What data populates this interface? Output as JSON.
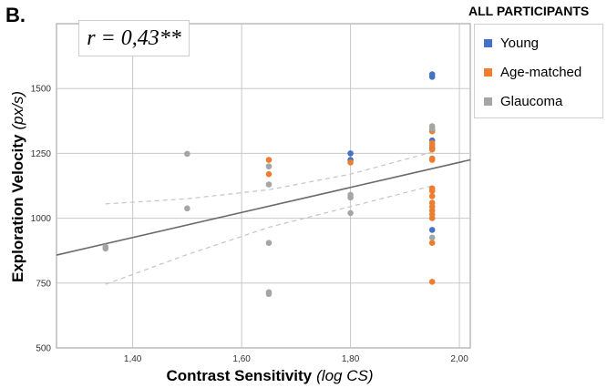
{
  "panel_label": "B.",
  "annotation": "r = 0,43**",
  "legend": {
    "title": "ALL PARTICIPANTS",
    "items": [
      {
        "name": "Young",
        "color": "#4472c4"
      },
      {
        "name": "Age-matched",
        "color": "#ed7d31"
      },
      {
        "name": "Glaucoma",
        "color": "#a5a5a5"
      }
    ]
  },
  "chart_data": {
    "type": "scatter",
    "xlabel_main": "Contrast Sensitivity",
    "xlabel_unit": "(log CS)",
    "ylabel_main": "Exploration Velocity",
    "ylabel_unit": "(px/s)",
    "xlim": [
      1.26,
      2.02
    ],
    "ylim": [
      500,
      1750
    ],
    "x_ticks": [
      1.4,
      1.6,
      1.8,
      2.0
    ],
    "x_tick_labels": [
      "1,40",
      "1,60",
      "1,80",
      "2,00"
    ],
    "y_ticks": [
      500,
      750,
      1000,
      1250,
      1500
    ],
    "y_tick_labels": [
      "500",
      "750",
      "1000",
      "1250",
      "1500"
    ],
    "grid": true,
    "series": [
      {
        "name": "Young",
        "color": "#4472c4",
        "points": [
          [
            1.8,
            1250
          ],
          [
            1.8,
            1225
          ],
          [
            1.95,
            1555
          ],
          [
            1.95,
            1545
          ],
          [
            1.95,
            1340
          ],
          [
            1.95,
            1300
          ],
          [
            1.95,
            1270
          ],
          [
            1.95,
            955
          ]
        ]
      },
      {
        "name": "Age-matched",
        "color": "#ed7d31",
        "points": [
          [
            1.65,
            1225
          ],
          [
            1.65,
            1170
          ],
          [
            1.8,
            1215
          ],
          [
            1.95,
            1335
          ],
          [
            1.95,
            1290
          ],
          [
            1.95,
            1280
          ],
          [
            1.95,
            1265
          ],
          [
            1.95,
            1230
          ],
          [
            1.95,
            1225
          ],
          [
            1.95,
            1115
          ],
          [
            1.95,
            1105
          ],
          [
            1.95,
            1085
          ],
          [
            1.95,
            1060
          ],
          [
            1.95,
            1045
          ],
          [
            1.95,
            1030
          ],
          [
            1.95,
            1015
          ],
          [
            1.95,
            1000
          ],
          [
            1.95,
            905
          ],
          [
            1.95,
            755
          ]
        ]
      },
      {
        "name": "Glaucoma",
        "color": "#a5a5a5",
        "points": [
          [
            1.35,
            890
          ],
          [
            1.35,
            883
          ],
          [
            1.5,
            1248
          ],
          [
            1.5,
            1038
          ],
          [
            1.65,
            1200
          ],
          [
            1.65,
            1130
          ],
          [
            1.65,
            905
          ],
          [
            1.65,
            715
          ],
          [
            1.65,
            708
          ],
          [
            1.8,
            1090
          ],
          [
            1.8,
            1080
          ],
          [
            1.8,
            1020
          ],
          [
            1.95,
            1355
          ],
          [
            1.95,
            1345
          ],
          [
            1.95,
            925
          ]
        ]
      }
    ],
    "fit_line": {
      "x": [
        1.26,
        2.02
      ],
      "y": [
        858,
        1225
      ]
    },
    "ci_upper": {
      "x": [
        1.35,
        1.5,
        1.65,
        1.8,
        1.95
      ],
      "y": [
        1055,
        1075,
        1110,
        1170,
        1255
      ]
    },
    "ci_lower": {
      "x": [
        1.35,
        1.5,
        1.65,
        1.8,
        1.95
      ],
      "y": [
        745,
        860,
        965,
        1045,
        1125
      ]
    }
  }
}
